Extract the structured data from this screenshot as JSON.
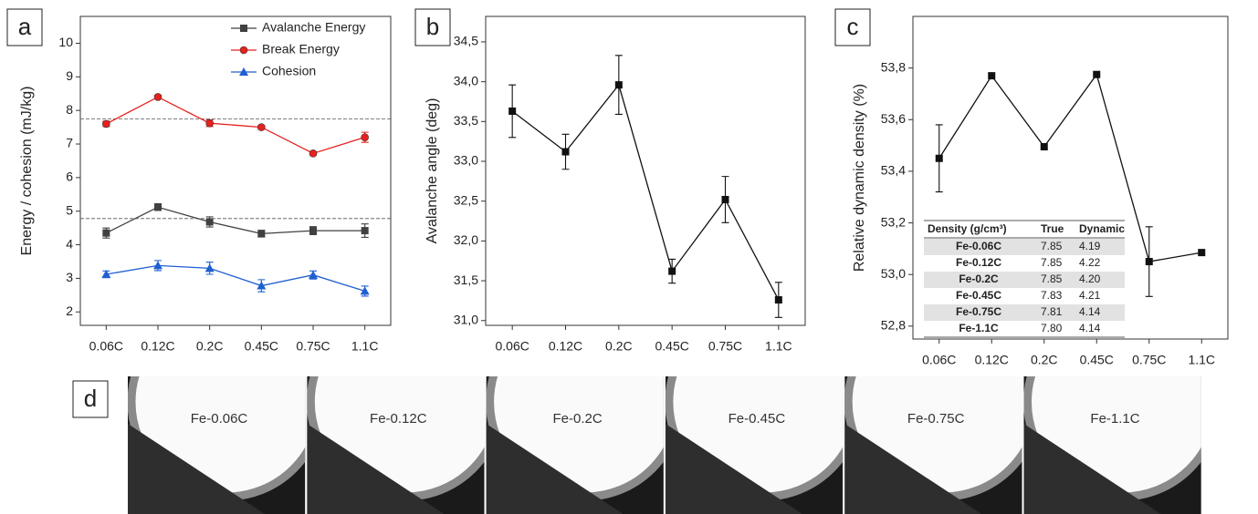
{
  "chart_data": [
    {
      "type": "line",
      "panel_label": "a",
      "y_label": "Energy / cohesion (mJ/kg)",
      "categories": [
        "0.06C",
        "0.12C",
        "0.2C",
        "0.45C",
        "0.75C",
        "1.1C"
      ],
      "series": [
        {
          "name": "Avalanche Energy",
          "color": "#404040",
          "marker": "square",
          "values": [
            4.35,
            5.12,
            4.68,
            4.33,
            4.42,
            4.42
          ],
          "errors": [
            0.15,
            0.1,
            0.15,
            0.1,
            0.12,
            0.2
          ]
        },
        {
          "name": "Break Energy",
          "color": "#e8201e",
          "marker": "circle",
          "values": [
            7.6,
            8.4,
            7.62,
            7.5,
            6.72,
            7.2
          ],
          "errors": [
            0.08,
            0.05,
            0.1,
            0.05,
            0.05,
            0.15
          ]
        },
        {
          "name": "Cohesion",
          "color": "#1f5fd1",
          "marker": "triangle",
          "values": [
            3.12,
            3.38,
            3.3,
            2.78,
            3.1,
            2.62
          ],
          "errors": [
            0.1,
            0.15,
            0.18,
            0.18,
            0.12,
            0.15
          ]
        }
      ],
      "reference_lines": [
        7.75,
        4.78
      ],
      "ylim": [
        1.6,
        10.8
      ],
      "yticks": [
        2,
        3,
        4,
        5,
        6,
        7,
        8,
        9,
        10
      ],
      "legend": "top-right"
    },
    {
      "type": "line",
      "panel_label": "b",
      "y_label": "Avalanche angle (deg)",
      "categories": [
        "0.06C",
        "0.12C",
        "0.2C",
        "0.45C",
        "0.75C",
        "1.1C"
      ],
      "color": "#111111",
      "marker": "square",
      "values": [
        33.63,
        33.12,
        33.96,
        31.62,
        32.52,
        31.26
      ],
      "errors": [
        0.33,
        0.22,
        0.37,
        0.15,
        0.29,
        0.22
      ],
      "ylim": [
        30.94,
        34.82
      ],
      "yticks": [
        {
          "value": 31.0,
          "label": "31,0"
        },
        {
          "value": 31.5,
          "label": "31,5"
        },
        {
          "value": 32.0,
          "label": "32,0"
        },
        {
          "value": 32.5,
          "label": "32,5"
        },
        {
          "value": 33.0,
          "label": "33,0"
        },
        {
          "value": 33.5,
          "label": "33,5"
        },
        {
          "value": 34.0,
          "label": "34,0"
        },
        {
          "value": 34.5,
          "label": "34,5"
        }
      ]
    },
    {
      "type": "line",
      "panel_label": "c",
      "y_label": "Relative dynamic density (%)",
      "categories": [
        "0.06C",
        "0.12C",
        "0.2C",
        "0.45C",
        "0.75C",
        "1.1C"
      ],
      "color": "#111111",
      "marker": "square",
      "values": [
        53.45,
        53.77,
        53.495,
        53.775,
        53.05,
        53.085
      ],
      "errors": [
        0.13,
        null,
        null,
        null,
        0.135,
        null
      ],
      "ylim": [
        52.75,
        54.0
      ],
      "yticks": [
        {
          "value": 52.8,
          "label": "52,8"
        },
        {
          "value": 53.0,
          "label": "53,0"
        },
        {
          "value": 53.2,
          "label": "53,2"
        },
        {
          "value": 53.4,
          "label": "53,4"
        },
        {
          "value": 53.6,
          "label": "53,6"
        },
        {
          "value": 53.8,
          "label": "53,8"
        }
      ],
      "table": {
        "columns": [
          "Density (g/cm³)",
          "True",
          "Dynamic"
        ],
        "rows": [
          [
            "Fe-0.06C",
            "7.85",
            "4.19"
          ],
          [
            "Fe-0.12C",
            "7.85",
            "4.22"
          ],
          [
            "Fe-0.2C",
            "7.85",
            "4.20"
          ],
          [
            "Fe-0.45C",
            "7.83",
            "4.21"
          ],
          [
            "Fe-0.75C",
            "7.81",
            "4.14"
          ],
          [
            "Fe-1.1C",
            "7.80",
            "4.14"
          ]
        ]
      }
    }
  ],
  "images": {
    "panel_label": "d",
    "labels": [
      "Fe-0.06C",
      "Fe-0.12C",
      "Fe-0.2C",
      "Fe-0.45C",
      "Fe-0.75C",
      "Fe-1.1C"
    ]
  }
}
